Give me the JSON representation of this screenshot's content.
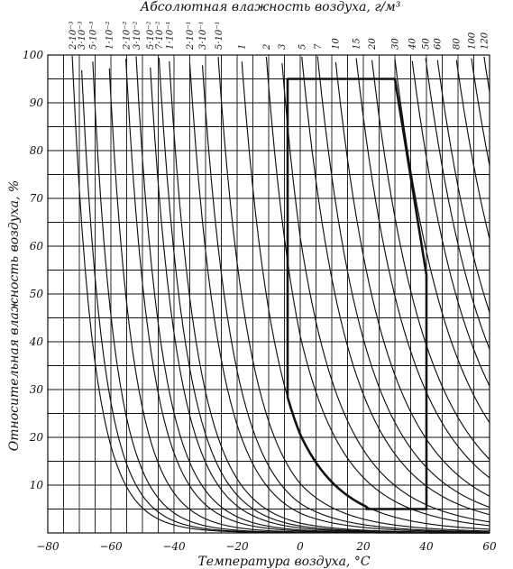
{
  "chart_data": {
    "type": "line",
    "title": "Абсолютная влажность воздуха, г/м³",
    "xlabel": "Температура воздуха, °С",
    "ylabel": "Относительная влажность воздуха, %",
    "xlim": [
      -80,
      60
    ],
    "ylim": [
      0,
      100
    ],
    "x_ticks": [
      {
        "value": -80,
        "label": "−80"
      },
      {
        "value": -60,
        "label": "−60"
      },
      {
        "value": -40,
        "label": "−40"
      },
      {
        "value": -20,
        "label": "−20"
      },
      {
        "value": 0,
        "label": "0"
      },
      {
        "value": 20,
        "label": "20"
      },
      {
        "value": 40,
        "label": "40"
      },
      {
        "value": 60,
        "label": "60"
      }
    ],
    "y_ticks": [
      10,
      20,
      30,
      40,
      50,
      60,
      70,
      80,
      90,
      100
    ],
    "grid": true,
    "grid_step": {
      "x": 5,
      "y": 5
    },
    "absolute_humidity_curves": [
      {
        "label": "2·10⁻³",
        "value": 0.002
      },
      {
        "label": "3·10⁻³",
        "value": 0.003
      },
      {
        "label": "5·10⁻³",
        "value": 0.005
      },
      {
        "label": "1·10⁻²",
        "value": 0.01
      },
      {
        "label": "2·10⁻²",
        "value": 0.02
      },
      {
        "label": "3·10⁻²",
        "value": 0.03
      },
      {
        "label": "5·10⁻²",
        "value": 0.05
      },
      {
        "label": "7·10⁻²",
        "value": 0.07
      },
      {
        "label": "1·10⁻¹",
        "value": 0.1
      },
      {
        "label": "2·10⁻¹",
        "value": 0.2
      },
      {
        "label": "3·10⁻¹",
        "value": 0.3
      },
      {
        "label": "5·10⁻¹",
        "value": 0.5
      },
      {
        "label": "1",
        "value": 1
      },
      {
        "label": "2",
        "value": 2
      },
      {
        "label": "3",
        "value": 3
      },
      {
        "label": "5",
        "value": 5
      },
      {
        "label": "7",
        "value": 7
      },
      {
        "label": "10",
        "value": 10
      },
      {
        "label": "15",
        "value": 15
      },
      {
        "label": "20",
        "value": 20
      },
      {
        "label": "30",
        "value": 30
      },
      {
        "label": "40",
        "value": 40
      },
      {
        "label": "50",
        "value": 50
      },
      {
        "label": "60",
        "value": 60
      },
      {
        "label": "80",
        "value": 80
      },
      {
        "label": "100",
        "value": 100
      },
      {
        "label": "120",
        "value": 120
      }
    ],
    "region": {
      "points": [
        [
          -4,
          95
        ],
        [
          30,
          95
        ],
        [
          40,
          54
        ],
        [
          40,
          5
        ],
        [
          21,
          5
        ],
        [
          -4,
          30
        ]
      ],
      "lower_curve_absolute_humidity": 1
    }
  }
}
